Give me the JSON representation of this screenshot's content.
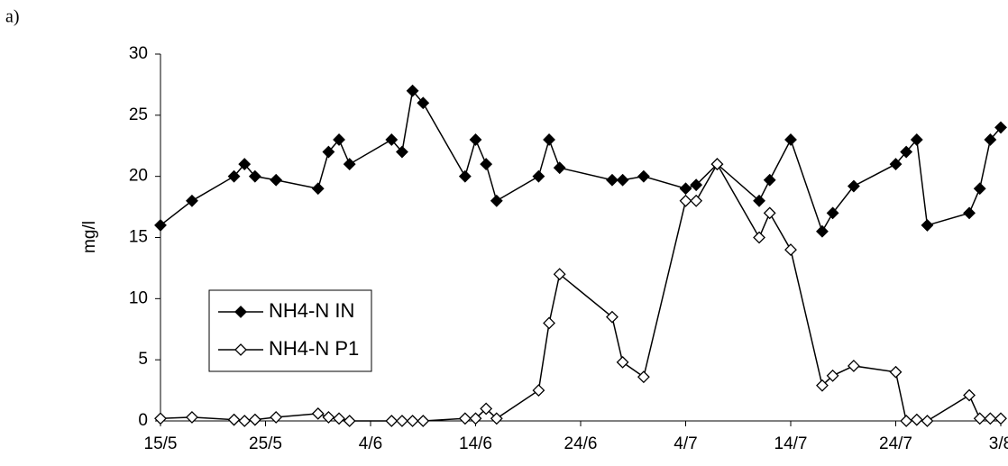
{
  "panel_label": "a)",
  "chart_data": {
    "type": "line",
    "ylabel": "mg/l",
    "x": [
      "15/5",
      "18/5",
      "22/5",
      "23/5",
      "24/5",
      "26/5",
      "30/5",
      "31/5",
      "1/6",
      "2/6",
      "6/6",
      "7/6",
      "8/6",
      "9/6",
      "13/6",
      "14/6",
      "15/6",
      "16/6",
      "20/6",
      "21/6",
      "22/6",
      "27/6",
      "28/6",
      "30/6",
      "4/7",
      "5/7",
      "7/7",
      "11/7",
      "12/7",
      "14/7",
      "17/7",
      "18/7",
      "20/7",
      "24/7",
      "25/7",
      "26/7",
      "27/7",
      "31/7",
      "1/8",
      "2/8",
      "3/8"
    ],
    "series": [
      {
        "name": "NH4-N IN",
        "color": "#000000",
        "marker_fill": "#000000",
        "values": [
          16,
          18,
          20,
          21,
          20,
          19.7,
          19,
          22,
          23,
          21,
          23,
          22,
          27,
          26,
          20,
          23,
          21,
          18,
          20,
          23,
          20.7,
          19.7,
          19.7,
          20,
          19,
          19.3,
          21,
          18,
          19.7,
          23,
          15.5,
          17,
          19.2,
          21,
          22,
          23,
          16,
          17,
          19,
          23,
          24
        ]
      },
      {
        "name": "NH4-N P1",
        "color": "#000000",
        "marker_fill": "#ffffff",
        "values": [
          0.2,
          0.3,
          0.1,
          0,
          0.1,
          0.3,
          0.6,
          0.3,
          0.2,
          0,
          0,
          0,
          0,
          0,
          0.2,
          0.2,
          1,
          0.2,
          2.5,
          8,
          12,
          8.5,
          4.8,
          3.6,
          18,
          18,
          21,
          15,
          17,
          14,
          2.9,
          3.7,
          4.5,
          4,
          0,
          0.1,
          0,
          2.1,
          0.2,
          0.2,
          0.2
        ]
      }
    ],
    "xlim": [
      "15/5",
      "3/8"
    ],
    "xticks": [
      "15/5",
      "25/5",
      "4/6",
      "14/6",
      "24/6",
      "4/7",
      "14/7",
      "24/7",
      "3/8"
    ],
    "ylim": [
      0,
      30
    ],
    "yticks": [
      0,
      5,
      10,
      15,
      20,
      25,
      30
    ],
    "grid": false,
    "legend_loc": "center left"
  }
}
